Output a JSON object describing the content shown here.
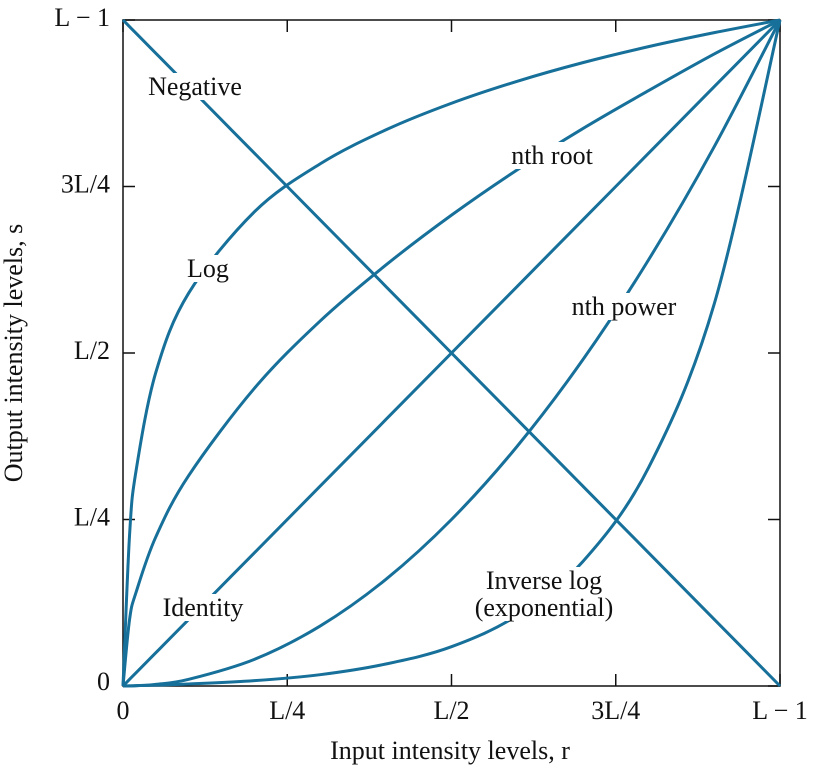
{
  "chart_data": {
    "type": "line",
    "xlabel": "Input intensity levels, r",
    "ylabel": "Output intensity levels, s",
    "x": [
      0,
      0.01,
      0.02,
      0.05,
      0.1,
      0.2,
      0.3,
      0.4,
      0.5,
      0.6,
      0.7,
      0.8,
      0.9,
      1
    ],
    "series": [
      {
        "name": "Negative",
        "color": "#17709a",
        "values": [
          1,
          0.99,
          0.98,
          0.95,
          0.9,
          0.8,
          0.7,
          0.6,
          0.5,
          0.4,
          0.3,
          0.2,
          0.1,
          0
        ]
      },
      {
        "name": "Log",
        "color": "#17709a",
        "values": [
          0,
          0.227,
          0.324,
          0.471,
          0.59,
          0.712,
          0.784,
          0.835,
          0.875,
          0.908,
          0.936,
          0.96,
          0.981,
          1
        ]
      },
      {
        "name": "nth root",
        "color": "#17709a",
        "values": [
          0,
          0.1,
          0.141,
          0.224,
          0.316,
          0.447,
          0.548,
          0.632,
          0.707,
          0.775,
          0.837,
          0.894,
          0.949,
          1
        ]
      },
      {
        "name": "Identity",
        "color": "#17709a",
        "values": [
          0,
          0.01,
          0.02,
          0.05,
          0.1,
          0.2,
          0.3,
          0.4,
          0.5,
          0.6,
          0.7,
          0.8,
          0.9,
          1
        ]
      },
      {
        "name": "nth power",
        "color": "#17709a",
        "values": [
          0,
          0.0001,
          0.0004,
          0.0025,
          0.01,
          0.04,
          0.09,
          0.16,
          0.25,
          0.36,
          0.49,
          0.64,
          0.81,
          1
        ]
      },
      {
        "name": "Inverse log (exponential)",
        "color": "#17709a",
        "values": [
          0,
          0.0002,
          0.0005,
          0.0013,
          0.003,
          0.008,
          0.017,
          0.033,
          0.059,
          0.106,
          0.187,
          0.328,
          0.574,
          1
        ]
      }
    ],
    "xlim": [
      0,
      1
    ],
    "ylim": [
      0,
      1
    ],
    "xticks": [
      0,
      {
        "value": 0.25,
        "label": "L/4"
      },
      {
        "value": 0.5,
        "label": "L/2"
      },
      {
        "value": 0.75,
        "label": "3L/4"
      },
      {
        "value": 1,
        "label": "L − 1"
      }
    ],
    "yticks": [
      0,
      {
        "value": 0.25,
        "label": "L/4"
      },
      {
        "value": 0.5,
        "label": "L/2"
      },
      {
        "value": 0.75,
        "label": "3L/4"
      },
      {
        "value": 1,
        "label": "L − 1"
      }
    ],
    "grid": false
  }
}
